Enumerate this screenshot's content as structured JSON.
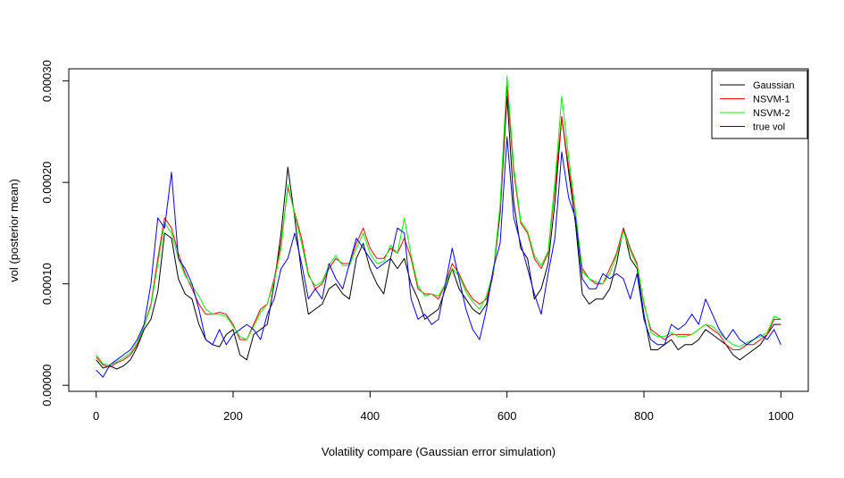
{
  "chart_data": {
    "type": "line",
    "title": "",
    "xlabel": "Volatility compare (Gaussian error simulation)",
    "ylabel": "vol (posterior mean)",
    "xlim": [
      -40,
      1040
    ],
    "ylim": [
      -6e-06,
      0.000312
    ],
    "xticks": [
      0,
      200,
      400,
      600,
      800,
      1000
    ],
    "xtick_labels": [
      "0",
      "200",
      "400",
      "600",
      "800",
      "1000"
    ],
    "yticks": [
      0,
      0.0001,
      0.0002,
      0.0003
    ],
    "ytick_labels": [
      "0.00000",
      "0.00010",
      "0.00020",
      "0.00030"
    ],
    "grid": false,
    "legend_position": "top-right",
    "x": [
      0,
      10,
      20,
      30,
      40,
      50,
      60,
      70,
      80,
      90,
      100,
      110,
      120,
      130,
      140,
      150,
      160,
      170,
      180,
      190,
      200,
      210,
      220,
      230,
      240,
      250,
      260,
      270,
      280,
      290,
      300,
      310,
      320,
      330,
      340,
      350,
      360,
      370,
      380,
      390,
      400,
      410,
      420,
      430,
      440,
      450,
      460,
      470,
      480,
      490,
      500,
      510,
      520,
      530,
      540,
      550,
      560,
      570,
      580,
      590,
      600,
      610,
      620,
      630,
      640,
      650,
      660,
      670,
      680,
      690,
      700,
      710,
      720,
      730,
      740,
      750,
      760,
      770,
      780,
      790,
      800,
      810,
      820,
      830,
      840,
      850,
      860,
      870,
      880,
      890,
      900,
      910,
      920,
      930,
      940,
      950,
      960,
      970,
      980,
      990,
      1000
    ],
    "series": [
      {
        "name": "Gaussian",
        "color": "#000000",
        "values": [
          2.5e-05,
          1.7e-05,
          1.9e-05,
          1.6e-05,
          1.9e-05,
          2.5e-05,
          3.8e-05,
          5.5e-05,
          6.5e-05,
          9.2e-05,
          0.00015,
          0.000145,
          0.000105,
          9e-05,
          8.5e-05,
          6e-05,
          4.5e-05,
          4e-05,
          3.8e-05,
          5e-05,
          5.5e-05,
          3e-05,
          2.5e-05,
          5e-05,
          5.5e-05,
          6e-05,
          0.0001,
          0.00015,
          0.000215,
          0.000165,
          0.00011,
          7e-05,
          7.5e-05,
          8e-05,
          9.5e-05,
          0.0001,
          9e-05,
          8.5e-05,
          0.000125,
          0.00014,
          0.000115,
          0.0001,
          9e-05,
          0.000125,
          0.000115,
          0.000125,
          0.0001,
          8.5e-05,
          6.5e-05,
          7e-05,
          7.5e-05,
          9.5e-05,
          0.000115,
          9.5e-05,
          8.5e-05,
          7.5e-05,
          7e-05,
          8e-05,
          0.00011,
          0.00017,
          0.000285,
          0.00018,
          0.000135,
          0.000125,
          8.5e-05,
          9.5e-05,
          0.00012,
          0.00018,
          0.000265,
          0.00021,
          0.00016,
          9e-05,
          8e-05,
          8.5e-05,
          8.5e-05,
          9.5e-05,
          0.00012,
          0.000155,
          0.000125,
          0.000115,
          7e-05,
          3.5e-05,
          3.5e-05,
          4e-05,
          4.5e-05,
          3.5e-05,
          4e-05,
          4e-05,
          4.5e-05,
          5.5e-05,
          5e-05,
          4.5e-05,
          4e-05,
          3e-05,
          2.5e-05,
          3e-05,
          3.5e-05,
          4e-05,
          5e-05,
          6e-05,
          6e-05
        ]
      },
      {
        "name": "NSVM-1",
        "color": "#ff0000",
        "values": [
          2.8e-05,
          2e-05,
          1.8e-05,
          2.2e-05,
          2.5e-05,
          3e-05,
          4e-05,
          5.8e-05,
          8e-05,
          0.000125,
          0.000165,
          0.000155,
          0.00013,
          0.00011,
          9.5e-05,
          8e-05,
          7e-05,
          7e-05,
          7.2e-05,
          7e-05,
          6e-05,
          4.5e-05,
          4.5e-05,
          6e-05,
          7.5e-05,
          8e-05,
          0.000105,
          0.00014,
          0.000195,
          0.00017,
          0.000145,
          0.00011,
          9.5e-05,
          0.0001,
          0.000115,
          0.000125,
          0.00012,
          0.00012,
          0.00014,
          0.000155,
          0.000135,
          0.000125,
          0.000125,
          0.000135,
          0.00013,
          0.000145,
          0.000125,
          9.5e-05,
          9e-05,
          9e-05,
          8.5e-05,
          0.0001,
          0.00012,
          0.00011,
          9.5e-05,
          8.5e-05,
          8e-05,
          8.5e-05,
          0.00011,
          0.000175,
          0.000295,
          0.00021,
          0.00016,
          0.00015,
          0.000125,
          0.000115,
          0.00013,
          0.000195,
          0.000265,
          0.000215,
          0.00017,
          0.000115,
          0.000105,
          0.0001,
          0.0001,
          0.000115,
          0.00013,
          0.000155,
          0.000135,
          0.00012,
          8e-05,
          5.5e-05,
          5e-05,
          4.5e-05,
          5e-05,
          5e-05,
          5e-05,
          5e-05,
          5.5e-05,
          6e-05,
          5.5e-05,
          5e-05,
          4e-05,
          3.5e-05,
          3.5e-05,
          4e-05,
          4e-05,
          4.5e-05,
          5e-05,
          6.5e-05,
          6.5e-05
        ]
      },
      {
        "name": "NSVM-2",
        "color": "#00ff00",
        "values": [
          3e-05,
          2.1e-05,
          2e-05,
          2.3e-05,
          2.7e-05,
          3.2e-05,
          4.2e-05,
          5.8e-05,
          7.8e-05,
          0.00012,
          0.00016,
          0.00015,
          0.000125,
          0.000108,
          9.8e-05,
          8.8e-05,
          7.5e-05,
          7e-05,
          7e-05,
          6.8e-05,
          5.8e-05,
          4.8e-05,
          4.5e-05,
          5.8e-05,
          7.2e-05,
          8e-05,
          0.000102,
          0.000135,
          0.000198,
          0.000168,
          0.00014,
          0.000108,
          9.8e-05,
          0.000102,
          0.000118,
          0.000128,
          0.000118,
          0.000118,
          0.000135,
          0.00015,
          0.00013,
          0.00012,
          0.000122,
          0.000138,
          0.00013,
          0.000165,
          0.000128,
          9.8e-05,
          8.8e-05,
          9e-05,
          8.8e-05,
          0.0001,
          0.000115,
          0.000108,
          9.2e-05,
          8.2e-05,
          7.5e-05,
          8.8e-05,
          0.000112,
          0.000178,
          0.000305,
          0.000215,
          0.000162,
          0.000152,
          0.000128,
          0.000118,
          0.000132,
          0.0002,
          0.000285,
          0.000225,
          0.000172,
          0.000112,
          0.000105,
          0.000102,
          0.0001,
          0.00011,
          0.000128,
          0.000152,
          0.000132,
          0.000118,
          8.2e-05,
          5.2e-05,
          4.8e-05,
          4.8e-05,
          5.2e-05,
          4.8e-05,
          4.8e-05,
          5e-05,
          5.5e-05,
          6e-05,
          5.8e-05,
          5.2e-05,
          4.5e-05,
          4e-05,
          3.8e-05,
          4.2e-05,
          4.5e-05,
          4.8e-05,
          5.2e-05,
          6.8e-05,
          6.5e-05
        ]
      },
      {
        "name": "true vol",
        "color": "#0000ff",
        "values": [
          1.5e-05,
          8e-06,
          2e-05,
          2.5e-05,
          3e-05,
          3.5e-05,
          4.5e-05,
          6e-05,
          0.0001,
          0.000165,
          0.000155,
          0.00021,
          0.000125,
          0.000115,
          0.0001,
          7.5e-05,
          4.5e-05,
          4e-05,
          5.5e-05,
          4e-05,
          5e-05,
          5.5e-05,
          6e-05,
          5.5e-05,
          4.5e-05,
          7e-05,
          8.5e-05,
          0.000115,
          0.000125,
          0.00015,
          0.00012,
          8.5e-05,
          9.5e-05,
          8.5e-05,
          0.00012,
          0.000105,
          9.5e-05,
          0.00012,
          0.000145,
          0.000135,
          0.000125,
          0.000115,
          0.00012,
          0.000125,
          0.000155,
          0.00015,
          8.5e-05,
          6.5e-05,
          7e-05,
          6e-05,
          6.5e-05,
          0.0001,
          0.000135,
          0.000105,
          7.5e-05,
          5.5e-05,
          4.5e-05,
          7.5e-05,
          0.000115,
          0.00014,
          0.000245,
          0.000165,
          0.00014,
          0.000115,
          9e-05,
          7e-05,
          0.00011,
          0.000145,
          0.00023,
          0.000185,
          0.000165,
          0.000105,
          9.5e-05,
          9.5e-05,
          0.00011,
          0.000105,
          0.00011,
          0.000105,
          8.5e-05,
          0.00011,
          6.5e-05,
          4.5e-05,
          4e-05,
          4e-05,
          6e-05,
          5.5e-05,
          6e-05,
          7e-05,
          6e-05,
          8.5e-05,
          7e-05,
          5.5e-05,
          4.5e-05,
          5.5e-05,
          4.5e-05,
          4e-05,
          4.5e-05,
          5e-05,
          4.5e-05,
          5.5e-05,
          4e-05
        ]
      }
    ]
  }
}
